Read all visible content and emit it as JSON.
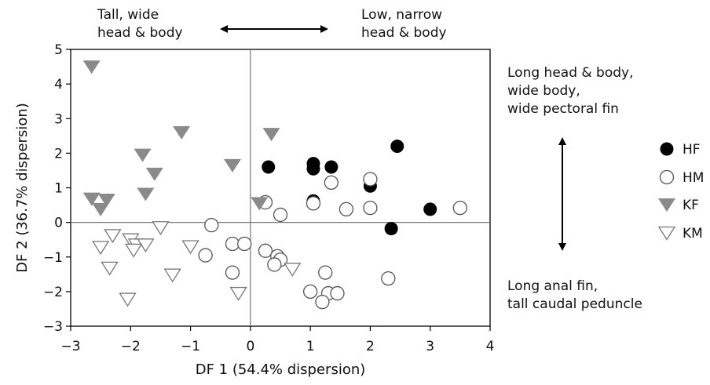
{
  "chart_data": {
    "type": "scatter",
    "xlabel": "DF 1 (54.4% dispersion)",
    "ylabel": "DF 2 (36.7% dispersion)",
    "xlim": [
      -3,
      4
    ],
    "ylim": [
      -3,
      5
    ],
    "xticks": [
      "−3",
      "−2",
      "−1",
      "0",
      "1",
      "2",
      "3",
      "4"
    ],
    "yticks": [
      "5",
      "4",
      "3",
      "2",
      "1",
      "0",
      "−1",
      "−2",
      "−3"
    ],
    "reference_lines": {
      "x": 0,
      "y": 0
    },
    "legend_position": "right",
    "series": [
      {
        "name": "HF",
        "marker": "circle-filled",
        "color": "#000000",
        "points": [
          [
            0.3,
            1.6
          ],
          [
            1.05,
            1.7
          ],
          [
            1.05,
            1.55
          ],
          [
            1.35,
            1.6
          ],
          [
            2.45,
            2.2
          ],
          [
            2.0,
            1.05
          ],
          [
            1.05,
            0.62
          ],
          [
            3.0,
            0.38
          ],
          [
            2.35,
            -0.18
          ]
        ]
      },
      {
        "name": "HM",
        "marker": "circle-open",
        "color": "#555555",
        "points": [
          [
            2.0,
            1.25
          ],
          [
            1.35,
            1.15
          ],
          [
            0.25,
            0.58
          ],
          [
            0.5,
            0.22
          ],
          [
            1.05,
            0.55
          ],
          [
            1.6,
            0.38
          ],
          [
            2.0,
            0.42
          ],
          [
            3.5,
            0.42
          ],
          [
            -0.65,
            -0.08
          ],
          [
            -0.75,
            -0.95
          ],
          [
            -0.3,
            -0.62
          ],
          [
            -0.1,
            -0.62
          ],
          [
            0.25,
            -0.82
          ],
          [
            0.45,
            -0.98
          ],
          [
            0.5,
            -1.08
          ],
          [
            0.4,
            -1.22
          ],
          [
            -0.3,
            -1.45
          ],
          [
            1.25,
            -1.45
          ],
          [
            2.3,
            -1.62
          ],
          [
            1.0,
            -2.0
          ],
          [
            1.3,
            -2.05
          ],
          [
            1.45,
            -2.05
          ],
          [
            1.2,
            -2.3
          ]
        ]
      },
      {
        "name": "KF",
        "marker": "triangle-down-filled",
        "color": "#8a8a8a",
        "points": [
          [
            -2.65,
            4.5
          ],
          [
            -1.15,
            2.6
          ],
          [
            0.35,
            2.55
          ],
          [
            -1.8,
            1.95
          ],
          [
            -0.3,
            1.65
          ],
          [
            -1.6,
            1.4
          ],
          [
            -1.75,
            0.82
          ],
          [
            -2.65,
            0.68
          ],
          [
            -2.4,
            0.65
          ],
          [
            -2.5,
            0.38
          ],
          [
            0.15,
            0.55
          ]
        ]
      },
      {
        "name": "KM",
        "marker": "triangle-down-open",
        "color": "#777777",
        "points": [
          [
            -2.3,
            -0.38
          ],
          [
            -1.5,
            -0.15
          ],
          [
            -2.0,
            -0.5
          ],
          [
            -1.9,
            -0.65
          ],
          [
            -1.75,
            -0.65
          ],
          [
            -2.5,
            -0.72
          ],
          [
            -1.95,
            -0.8
          ],
          [
            -1.0,
            -0.7
          ],
          [
            -2.35,
            -1.32
          ],
          [
            -1.3,
            -1.52
          ],
          [
            0.7,
            -1.35
          ],
          [
            -0.2,
            -2.05
          ],
          [
            -2.05,
            -2.22
          ]
        ]
      }
    ]
  },
  "annotations": {
    "top_left": "Tall, wide\nhead & body",
    "top_right": "Low, narrow\nhead & body",
    "right_top": "Long head & body,\nwide body,\nwide pectoral fin",
    "right_bottom": "Long anal fin,\ntall caudal peduncle"
  }
}
